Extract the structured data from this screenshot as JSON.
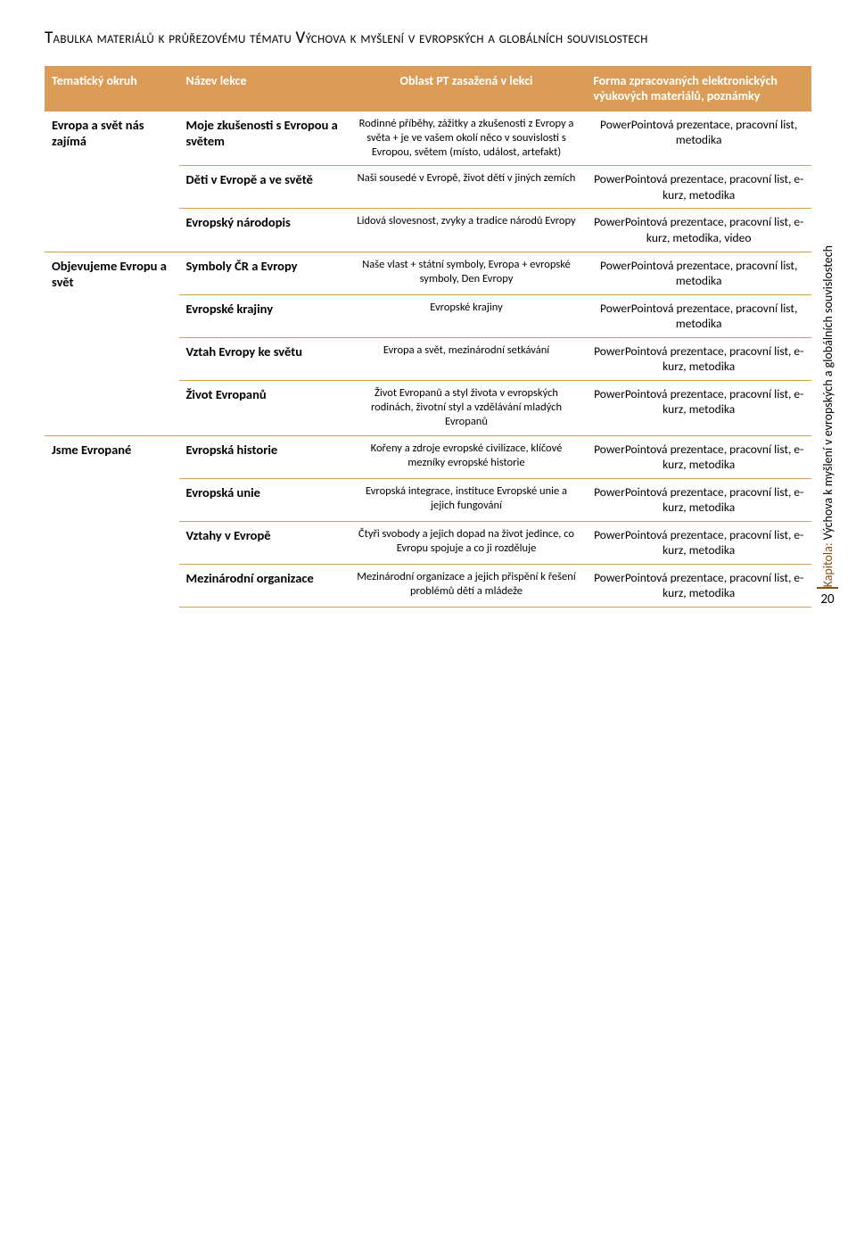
{
  "heading": "Tabulka materiálů k průřezovému tématu Výchova k myšlení v evropských a globálních souvislostech",
  "columns": {
    "c1": "Tematický okruh",
    "c2": "Název lekce",
    "c3": "Oblast PT zasažená v lekci",
    "c4": "Forma zpracovaných elektronických výukových materiálů, poznámky"
  },
  "groups": [
    {
      "okruh": "Evropa a svět nás zajímá",
      "rows": [
        {
          "lekce": "Moje zkušenosti s Evropou a světem",
          "oblast": "Rodinné příběhy, zážitky a zkušenosti z Evropy a světa + je ve vašem okolí něco v souvislosti s Evropou, světem (místo, událost, artefakt)",
          "forma": "PowerPointová prezentace, pracovní list, metodika"
        },
        {
          "lekce": "Děti v Evropě a ve světě",
          "oblast": "Naši sousedé v Evropě, život dětí v jiných zemích",
          "forma": "PowerPointová prezentace, pracovní list, e-kurz, metodika"
        },
        {
          "lekce": "Evropský národopis",
          "oblast": "Lidová slovesnost, zvyky a tradice národů Evropy",
          "forma": "PowerPointová prezentace, pracovní list, e-kurz, metodika, video"
        }
      ]
    },
    {
      "okruh": "Objevujeme Evropu a svět",
      "rows": [
        {
          "lekce": "Symboly ČR a Evropy",
          "oblast": "Naše vlast + státní symboly, Evropa + evropské symboly, Den Evropy",
          "forma": "PowerPointová prezentace, pracovní list, metodika"
        },
        {
          "lekce": "Evropské krajiny",
          "oblast": "Evropské krajiny",
          "forma": "PowerPointová prezentace, pracovní list, metodika"
        },
        {
          "lekce": "Vztah Evropy ke světu",
          "oblast": "Evropa a svět, mezinárodní setkávání",
          "forma": "PowerPointová prezentace, pracovní list, e-kurz, metodika"
        },
        {
          "lekce": "Život Evropanů",
          "oblast": "Život Evropanů a styl života v evropských rodinách, životní styl a vzdělávání mladých Evropanů",
          "forma": "PowerPointová prezentace, pracovní list, e-kurz, metodika"
        }
      ]
    },
    {
      "okruh": "Jsme Evropané",
      "rows": [
        {
          "lekce": "Evropská historie",
          "oblast": "Kořeny a zdroje evropské civilizace, klíčové mezníky evropské historie",
          "forma": "PowerPointová prezentace, pracovní list, e-kurz, metodika"
        },
        {
          "lekce": "Evropská unie",
          "oblast": "Evropská integrace, instituce Evropské unie a jejich fungování",
          "forma": "PowerPointová prezentace, pracovní list, e-kurz, metodika"
        },
        {
          "lekce": "Vztahy v Evropě",
          "oblast": "Čtyři svobody a jejich dopad na život jedince, co Evropu spojuje a co ji rozděluje",
          "forma": "PowerPointová prezentace, pracovní list, e-kurz, metodika"
        },
        {
          "lekce": "Mezinárodní organizace",
          "oblast": "Mezinárodní organizace a jejich přispění k řešení problémů dětí a mládeže",
          "forma": "PowerPointová prezentace, pracovní list, e-kurz, metodika"
        }
      ]
    }
  ],
  "side": {
    "kapitola": "Kapitola:",
    "text": " Výchova k myšlení v evropských a globálních souvislostech",
    "page": "20"
  },
  "colors": {
    "accent": "#da9c56",
    "kap": "#884c12"
  }
}
